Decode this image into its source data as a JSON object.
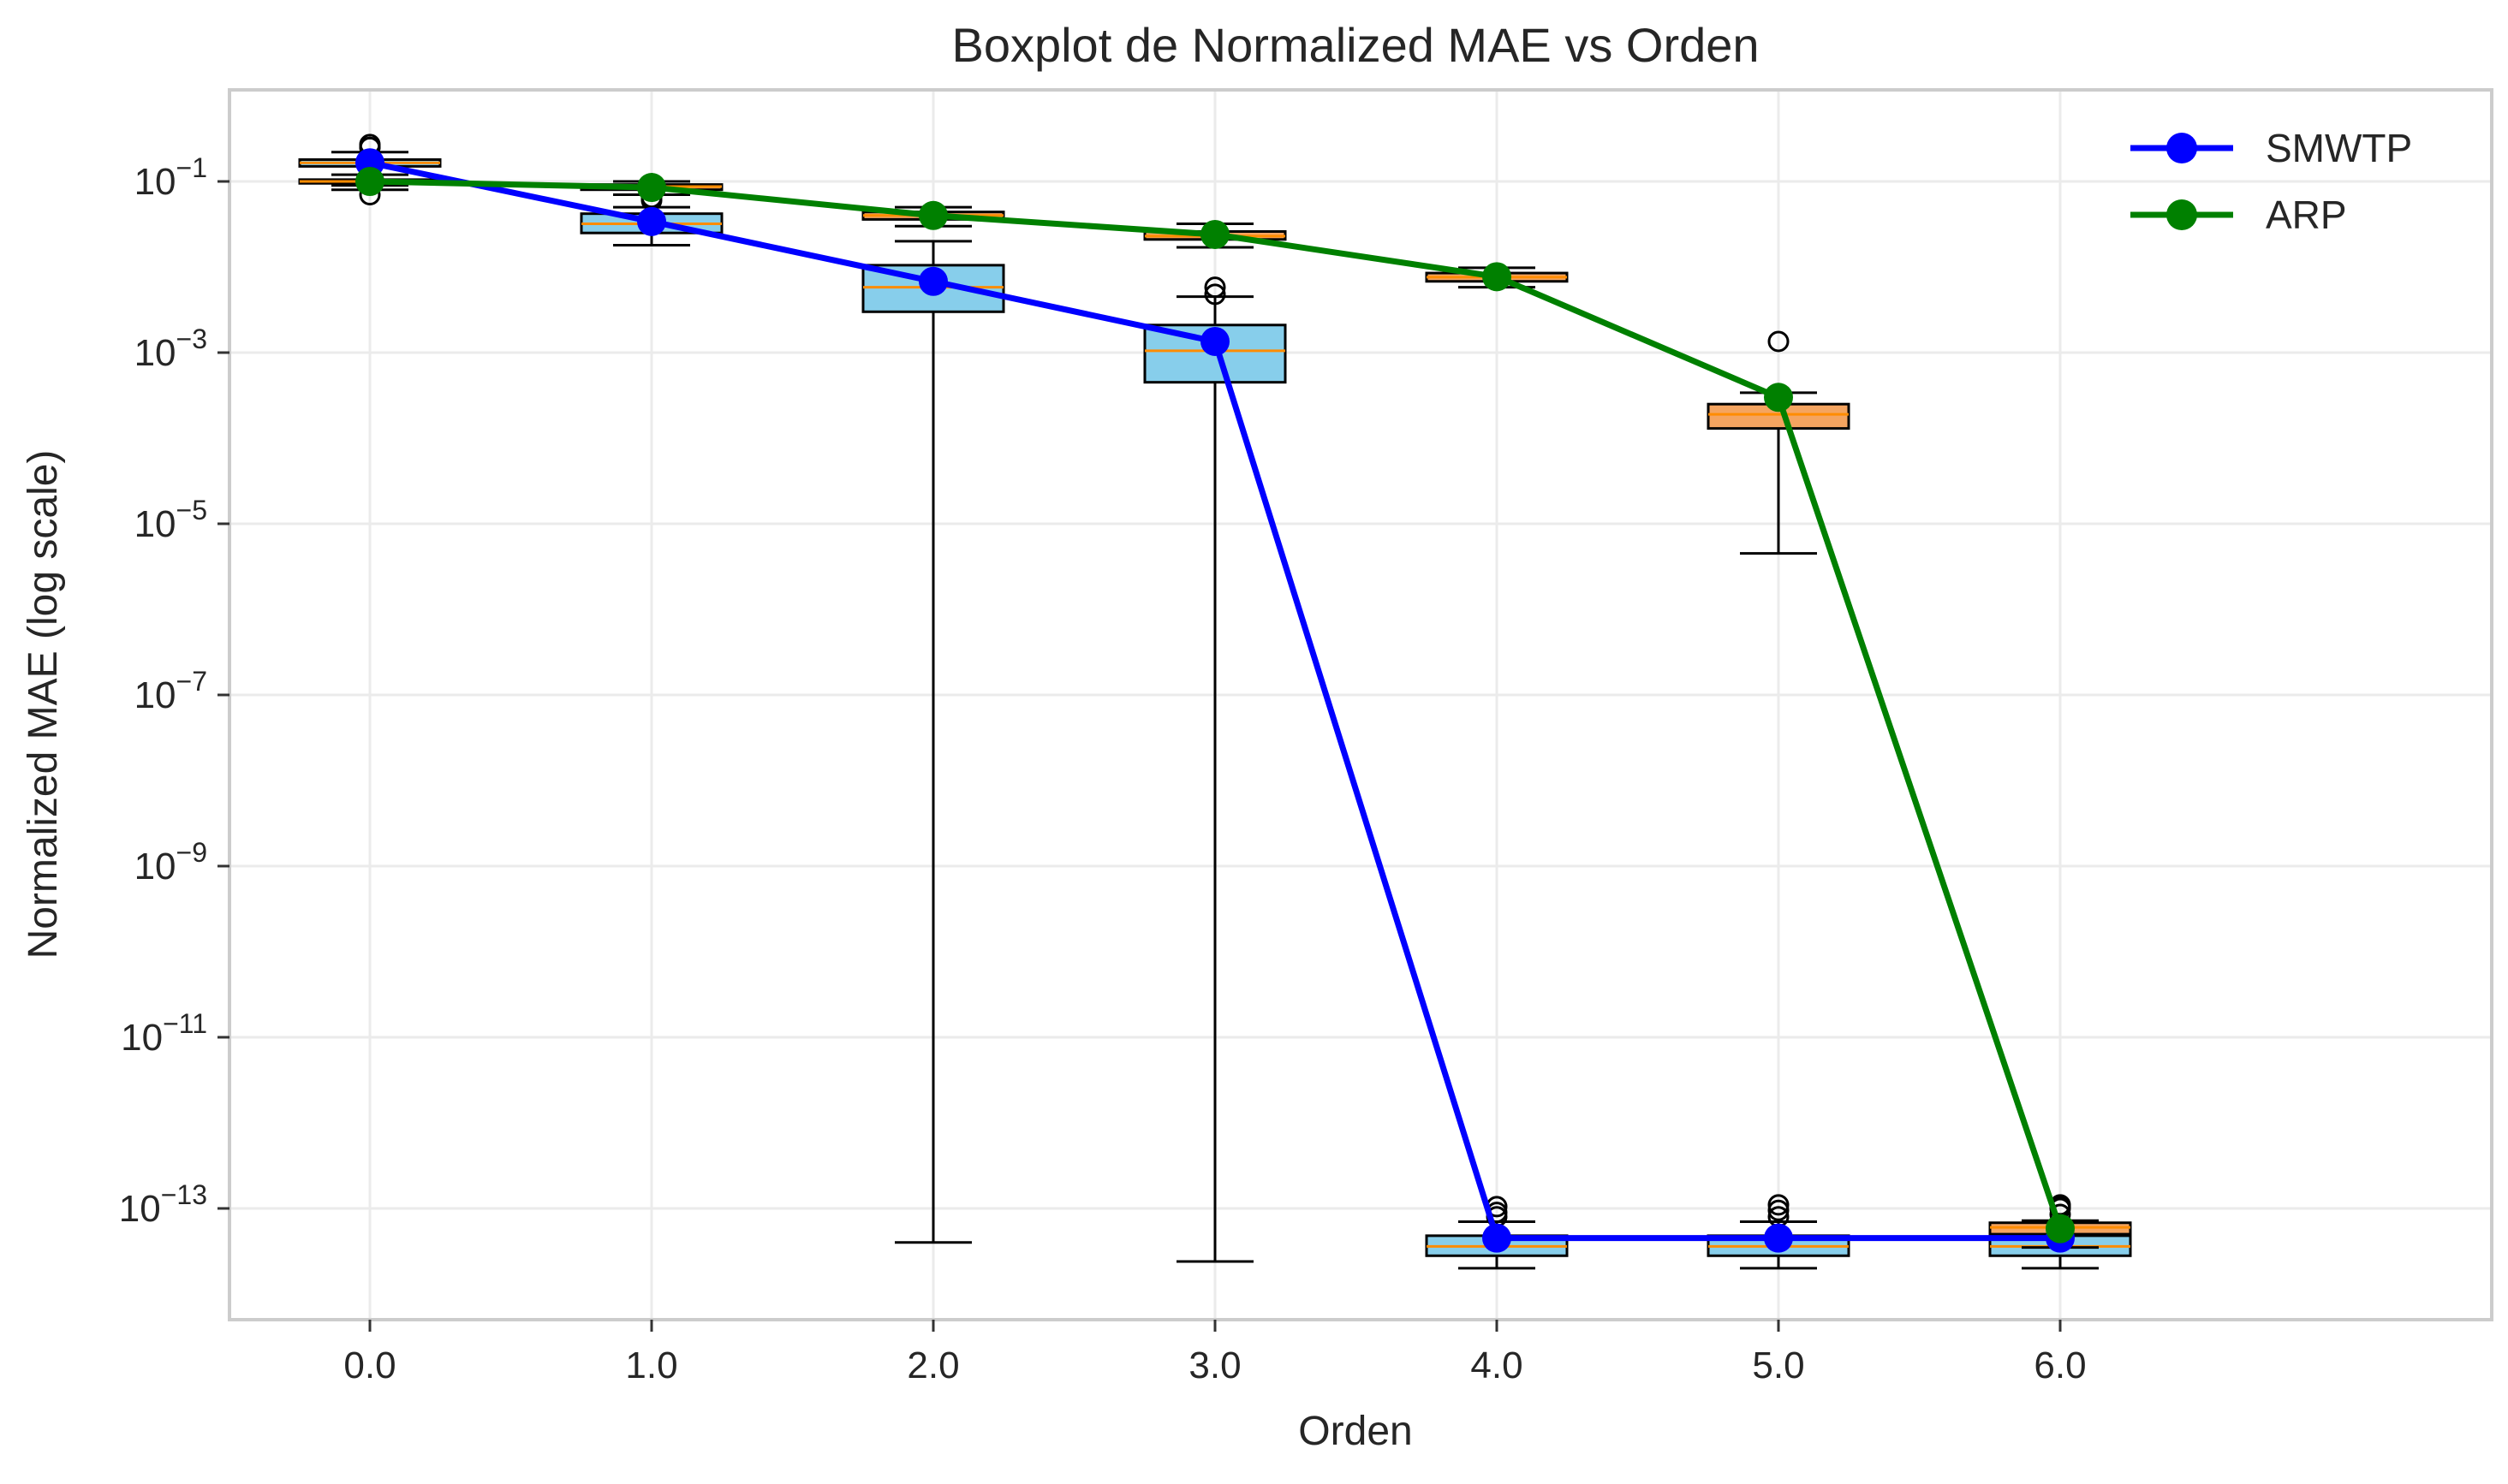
{
  "chart_data": {
    "type": "boxplot",
    "title": "Boxplot de Normalized MAE vs Orden",
    "xlabel": "Orden",
    "ylabel": "Normalized MAE (log scale)",
    "yscale": "log",
    "ylim": [
      4e-15,
      1.2
    ],
    "xlim": [
      -0.5,
      7.2
    ],
    "grid": true,
    "legend_position": "top-right",
    "x_ticks": [
      "0.0",
      "1.0",
      "2.0",
      "3.0",
      "4.0",
      "5.0",
      "6.0"
    ],
    "y_ticks": [
      {
        "value": 0.1,
        "base": "10",
        "exp": "−1"
      },
      {
        "value": 0.001,
        "base": "10",
        "exp": "−3"
      },
      {
        "value": 1e-05,
        "base": "10",
        "exp": "−5"
      },
      {
        "value": 1e-07,
        "base": "10",
        "exp": "−7"
      },
      {
        "value": 1e-09,
        "base": "10",
        "exp": "−9"
      },
      {
        "value": 1e-11,
        "base": "10",
        "exp": "−11"
      },
      {
        "value": 1e-13,
        "base": "10",
        "exp": "−13"
      }
    ],
    "boxes": [
      {
        "group": "SMWTP",
        "color": "#87CEEB",
        "stats": [
          {
            "x": 0,
            "whislo": 0.09,
            "q1": 0.15,
            "med": 0.165,
            "q3": 0.18,
            "whishi": 0.22,
            "fliers": [
              0.25,
              0.27
            ]
          },
          {
            "x": 1,
            "whislo": 0.018,
            "q1": 0.025,
            "med": 0.032,
            "q3": 0.042,
            "whishi": 0.05,
            "fliers": []
          },
          {
            "x": 2,
            "whislo": 4e-14,
            "q1": 0.003,
            "med": 0.0058,
            "q3": 0.0105,
            "whishi": 0.02,
            "fliers": []
          },
          {
            "x": 3,
            "whislo": 2.4e-14,
            "q1": 0.00045,
            "med": 0.00105,
            "q3": 0.0021,
            "whishi": 0.0045,
            "fliers": [
              0.0048,
              0.0058
            ]
          },
          {
            "x": 4,
            "whislo": 2e-14,
            "q1": 2.8e-14,
            "med": 3.6e-14,
            "q3": 4.8e-14,
            "whishi": 7e-14,
            "fliers": [
              8e-14,
              9e-14,
              1.05e-13
            ]
          },
          {
            "x": 5,
            "whislo": 2e-14,
            "q1": 2.8e-14,
            "med": 3.6e-14,
            "q3": 4.8e-14,
            "whishi": 7e-14,
            "fliers": [
              8e-14,
              9.5e-14,
              1.1e-13
            ]
          },
          {
            "x": 6,
            "whislo": 2e-14,
            "q1": 2.8e-14,
            "med": 3.6e-14,
            "q3": 4.8e-14,
            "whishi": 7e-14,
            "fliers": [
              8.5e-14,
              1.05e-13
            ]
          }
        ]
      },
      {
        "group": "ARP",
        "color": "#F4A460",
        "stats": [
          {
            "x": 0,
            "whislo": 0.08,
            "q1": 0.095,
            "med": 0.1,
            "q3": 0.105,
            "whishi": 0.12,
            "fliers": [
              0.07,
              0.13,
              0.25
            ]
          },
          {
            "x": 1,
            "whislo": 0.07,
            "q1": 0.08,
            "med": 0.087,
            "q3": 0.092,
            "whishi": 0.1,
            "fliers": [
              0.06,
              0.065
            ]
          },
          {
            "x": 2,
            "whislo": 0.03,
            "q1": 0.036,
            "med": 0.04,
            "q3": 0.044,
            "whishi": 0.05,
            "fliers": []
          },
          {
            "x": 3,
            "whislo": 0.017,
            "q1": 0.021,
            "med": 0.023,
            "q3": 0.026,
            "whishi": 0.032,
            "fliers": []
          },
          {
            "x": 4,
            "whislo": 0.0058,
            "q1": 0.0068,
            "med": 0.0076,
            "q3": 0.0085,
            "whishi": 0.0098,
            "fliers": []
          },
          {
            "x": 5,
            "whislo": 4.5e-06,
            "q1": 0.00013,
            "med": 0.00019,
            "q3": 0.00025,
            "whishi": 0.00034,
            "fliers": [
              0.00135
            ]
          },
          {
            "x": 6,
            "whislo": 3.5e-14,
            "q1": 5e-14,
            "med": 6e-14,
            "q3": 6.8e-14,
            "whishi": 7.2e-14,
            "fliers": [
              1e-13,
              1.1e-13
            ]
          }
        ]
      }
    ],
    "series": [
      {
        "name": "SMWTP",
        "color": "#0000FF",
        "x": [
          0,
          1,
          2,
          3,
          4,
          5,
          6
        ],
        "values": [
          0.165,
          0.034,
          0.0068,
          0.00135,
          4.5e-14,
          4.5e-14,
          4.5e-14
        ]
      },
      {
        "name": "ARP",
        "color": "#008000",
        "x": [
          0,
          1,
          2,
          3,
          4,
          5,
          6
        ],
        "values": [
          0.1,
          0.085,
          0.04,
          0.024,
          0.0077,
          0.0003,
          5.8e-14
        ]
      }
    ],
    "colors": {
      "median": "#FF8C00",
      "grid": "#EBEBEB",
      "axes_edge": "#CCCCCC",
      "box_edge": "#000000"
    }
  }
}
